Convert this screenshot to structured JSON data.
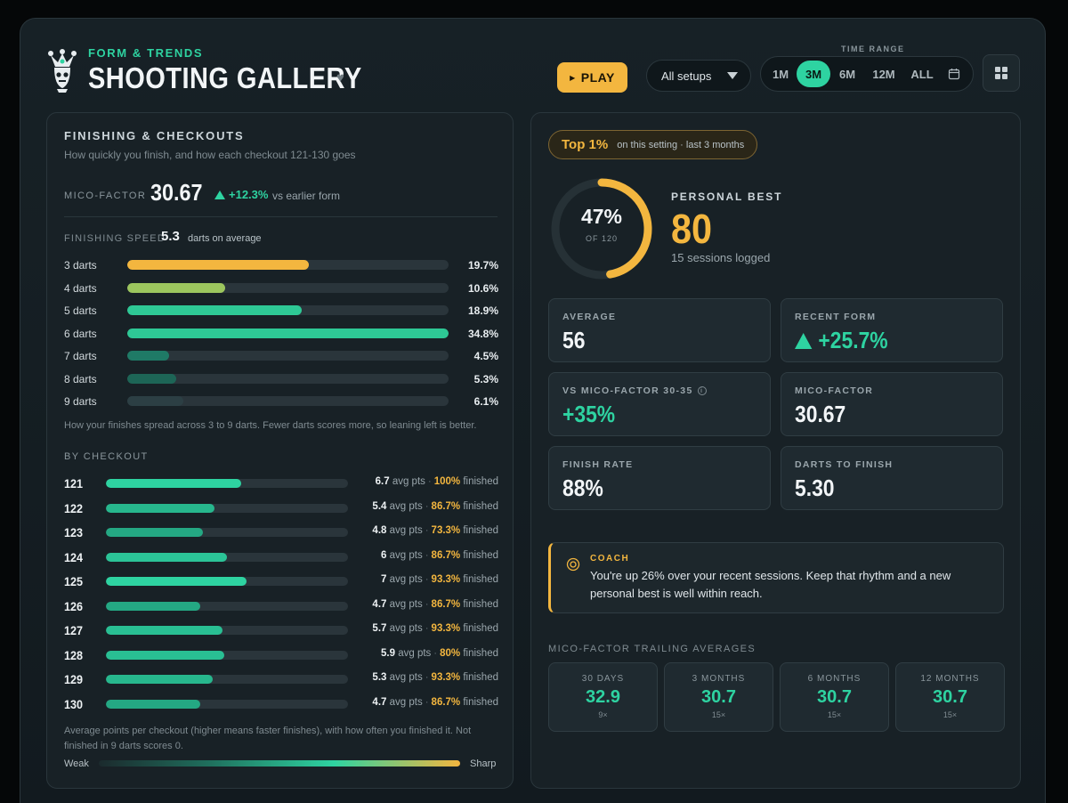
{
  "header": {
    "eyebrow": "FORM & TRENDS",
    "title": "SHOOTING GALLERY",
    "play_label": "PLAY",
    "setup_value": "All setups",
    "time_range_label": "TIME RANGE",
    "time_options": [
      "1M",
      "3M",
      "6M",
      "12M",
      "ALL"
    ],
    "time_active": "3M"
  },
  "finishing": {
    "title": "FINISHING & CHECKOUTS",
    "subtitle": "How quickly you finish, and how each checkout 121-130 goes",
    "mico_label": "MICO-FACTOR",
    "mico_value": "30.67",
    "mico_delta": "+12.3%",
    "mico_vs": "vs earlier form",
    "speed_label": "FINISHING SPEED",
    "speed_value": "5.3",
    "speed_note": "darts on average",
    "speed_rows": [
      {
        "label": "3 darts",
        "pct_text": "19.7%",
        "fill": 0.566,
        "color": "#f3b63f"
      },
      {
        "label": "4 darts",
        "pct_text": "10.6%",
        "fill": 0.305,
        "color": "#9cc65e"
      },
      {
        "label": "5 darts",
        "pct_text": "18.9%",
        "fill": 0.543,
        "color": "#2ec895"
      },
      {
        "label": "6 darts",
        "pct_text": "34.8%",
        "fill": 1.0,
        "color": "#2ec895"
      },
      {
        "label": "7 darts",
        "pct_text": "4.5%",
        "fill": 0.129,
        "color": "#1f7a66"
      },
      {
        "label": "8 darts",
        "pct_text": "5.3%",
        "fill": 0.152,
        "color": "#1d6556"
      },
      {
        "label": "9 darts",
        "pct_text": "6.1%",
        "fill": 0.175,
        "color": "#2c3f44"
      }
    ],
    "speed_footnote": "How your finishes spread across 3 to 9 darts. Fewer darts scores more, so leaning left is better.",
    "checkout_label": "BY CHECKOUT",
    "checkouts": [
      {
        "num": "121",
        "avg": "6.7",
        "fin": "100%",
        "fill": 0.56,
        "color": "#2ed3a1"
      },
      {
        "num": "122",
        "avg": "5.4",
        "fin": "86.7%",
        "fill": 0.45,
        "color": "#27b78d"
      },
      {
        "num": "123",
        "avg": "4.8",
        "fin": "73.3%",
        "fill": 0.4,
        "color": "#24a883"
      },
      {
        "num": "124",
        "avg": "6",
        "fin": "86.7%",
        "fill": 0.5,
        "color": "#2bc497"
      },
      {
        "num": "125",
        "avg": "7",
        "fin": "93.3%",
        "fill": 0.58,
        "color": "#2ed3a1"
      },
      {
        "num": "126",
        "avg": "4.7",
        "fin": "86.7%",
        "fill": 0.39,
        "color": "#24a883"
      },
      {
        "num": "127",
        "avg": "5.7",
        "fin": "93.3%",
        "fill": 0.48,
        "color": "#29bf93"
      },
      {
        "num": "128",
        "avg": "5.9",
        "fin": "80%",
        "fill": 0.49,
        "color": "#29bf93"
      },
      {
        "num": "129",
        "avg": "5.3",
        "fin": "93.3%",
        "fill": 0.44,
        "color": "#27b78d"
      },
      {
        "num": "130",
        "avg": "4.7",
        "fin": "86.7%",
        "fill": 0.39,
        "color": "#24a883"
      }
    ],
    "avg_suffix": "avg pts",
    "fin_suffix": "finished",
    "checkout_footnote": "Average points per checkout (higher means faster finishes), with how often you finished it. Not finished in 9 darts scores 0.",
    "legend_weak": "Weak",
    "legend_sharp": "Sharp"
  },
  "summary": {
    "rank": "Top 1%",
    "rank_context": "on this setting · last 3 months",
    "ring_pct": "47%",
    "ring_fill": 0.47,
    "ring_of": "OF 120",
    "pb_label": "PERSONAL BEST",
    "pb_value": "80",
    "sessions": "15 sessions logged",
    "cards": [
      {
        "key": "AVERAGE",
        "value": "56",
        "style": "plain"
      },
      {
        "key": "RECENT FORM",
        "value": "+25.7%",
        "style": "green-up"
      },
      {
        "key": "VS MICO-FACTOR 30-35",
        "value": "+35%",
        "style": "green",
        "info": "i"
      },
      {
        "key": "MICO-FACTOR",
        "value": "30.67",
        "style": "plain"
      },
      {
        "key": "FINISH RATE",
        "value": "88%",
        "style": "plain"
      },
      {
        "key": "DARTS TO FINISH",
        "value": "5.30",
        "style": "plain"
      }
    ],
    "coach_label": "COACH",
    "coach_msg": "You're up 26% over your recent sessions. Keep that rhythm and a new personal best is well within reach.",
    "trailing_label": "MICO-FACTOR TRAILING AVERAGES",
    "trailing": [
      {
        "period": "30 DAYS",
        "value": "32.9",
        "count": "9×"
      },
      {
        "period": "3 MONTHS",
        "value": "30.7",
        "count": "15×"
      },
      {
        "period": "6 MONTHS",
        "value": "30.7",
        "count": "15×"
      },
      {
        "period": "12 MONTHS",
        "value": "30.7",
        "count": "15×"
      }
    ]
  },
  "colors": {
    "accent_green": "#2ed3a1",
    "accent_gold": "#f3b63f"
  }
}
